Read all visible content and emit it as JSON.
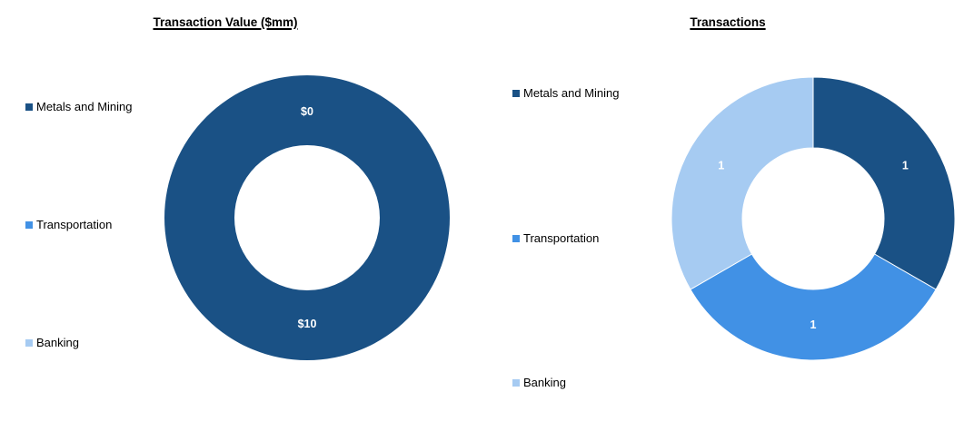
{
  "page": {
    "background_color": "#FFFFFF"
  },
  "chart_data": [
    {
      "type": "pie",
      "subtype": "donut",
      "title": "Transaction Value ($mm)",
      "categories": [
        "Metals and Mining",
        "Transportation",
        "Banking"
      ],
      "values": [
        10,
        0,
        0
      ],
      "data_labels": [
        "$10",
        "$0",
        "$0"
      ],
      "colors": [
        "#1A5185",
        "#4191E5",
        "#A6CBF2"
      ],
      "data_label_color": "#FFFFFF",
      "hole_ratio": 0.5,
      "start_angle_deg": 0,
      "direction": "clockwise",
      "legend_position": "left",
      "legend": [
        {
          "label": "Metals and Mining",
          "color": "#1A5185"
        },
        {
          "label": "Transportation",
          "color": "#4191E5"
        },
        {
          "label": "Banking",
          "color": "#A6CBF2"
        }
      ]
    },
    {
      "type": "pie",
      "subtype": "donut",
      "title": "Transactions",
      "categories": [
        "Metals and Mining",
        "Transportation",
        "Banking"
      ],
      "values": [
        1,
        1,
        1
      ],
      "data_labels": [
        "1",
        "1",
        "1"
      ],
      "colors": [
        "#1A5185",
        "#4191E5",
        "#A6CBF2"
      ],
      "data_label_color": "#FFFFFF",
      "hole_ratio": 0.5,
      "start_angle_deg": 0,
      "direction": "clockwise",
      "legend_position": "left",
      "legend": [
        {
          "label": "Metals and Mining",
          "color": "#1A5185"
        },
        {
          "label": "Transportation",
          "color": "#4191E5"
        },
        {
          "label": "Banking",
          "color": "#A6CBF2"
        }
      ]
    }
  ]
}
